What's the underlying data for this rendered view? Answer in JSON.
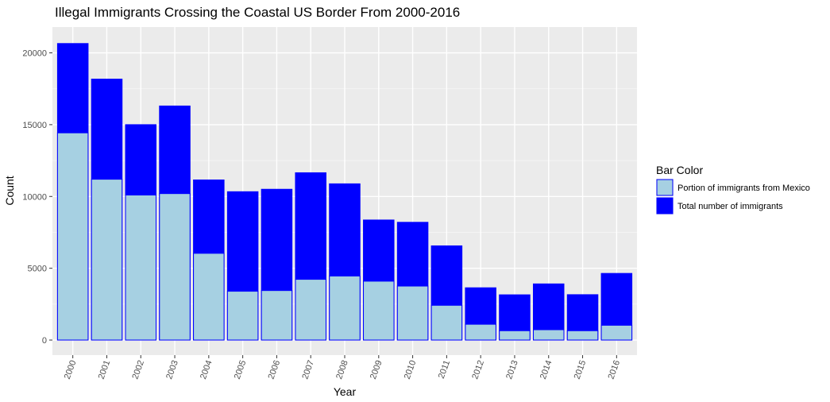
{
  "chart_data": {
    "type": "bar",
    "title": "Illegal Immigrants Crossing the Coastal US Border From 2000-2016",
    "xlabel": "Year",
    "ylabel": "Count",
    "ylim": [
      -1050,
      21800
    ],
    "yticks": [
      0,
      5000,
      10000,
      15000,
      20000
    ],
    "grid": true,
    "legend_position": "right",
    "legend_title": "Bar Color",
    "categories": [
      "2000",
      "2001",
      "2002",
      "2003",
      "2004",
      "2005",
      "2006",
      "2007",
      "2008",
      "2009",
      "2010",
      "2011",
      "2012",
      "2013",
      "2014",
      "2015",
      "2016"
    ],
    "series": [
      {
        "name": "Total number of immigrants",
        "color": "#0000ff",
        "values": [
          20650,
          18170,
          15000,
          16300,
          11150,
          10330,
          10500,
          11650,
          10880,
          8360,
          8200,
          6560,
          3640,
          3150,
          3910,
          3160,
          4640
        ]
      },
      {
        "name": "Portion of immigrants from Mexico",
        "color": "#a6d0e2",
        "values": [
          14430,
          11200,
          10100,
          10200,
          6040,
          3400,
          3450,
          4230,
          4460,
          4100,
          3760,
          2420,
          1100,
          650,
          720,
          650,
          1030
        ]
      }
    ],
    "legend_order": [
      1,
      0
    ]
  }
}
